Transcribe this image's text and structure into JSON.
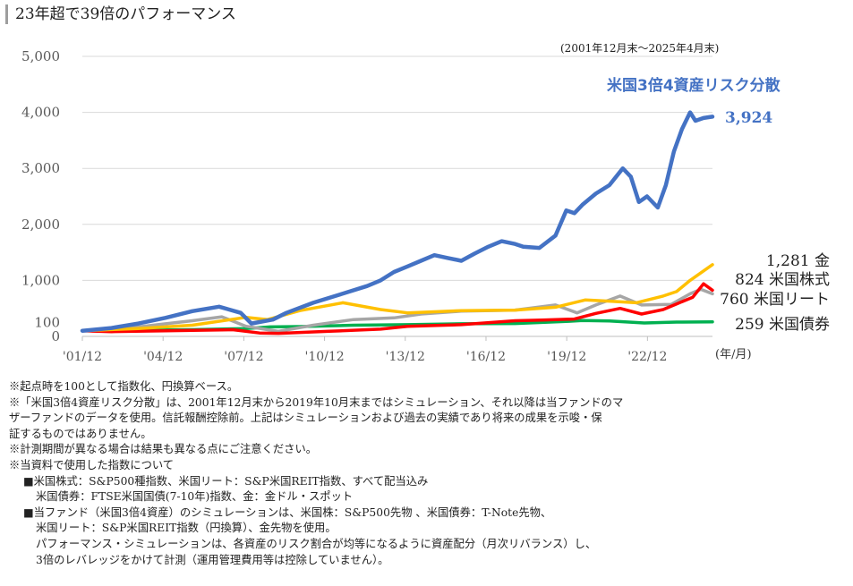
{
  "title": "23年超で39倍のパフォーマンス",
  "period": "(2001年12月末〜2025年4月末)",
  "chart_data": {
    "type": "line",
    "ylim": [
      0,
      5000
    ],
    "y_ticks": [
      "0",
      "100",
      "1,000",
      "2,000",
      "3,000",
      "4,000",
      "5,000"
    ],
    "y_tick_values": [
      0,
      100,
      1000,
      2000,
      3000,
      4000,
      5000
    ],
    "x_ticks": [
      "'01/12",
      "'04/12",
      "'07/12",
      "'10/12",
      "'13/12",
      "'16/12",
      "'19/12",
      "'22/12"
    ],
    "x_tick_values": [
      2001.917,
      2004.917,
      2007.917,
      2010.917,
      2013.917,
      2016.917,
      2019.917,
      2022.917
    ],
    "x_range": [
      2001.917,
      2025.333
    ],
    "x_unit": "(年/月)",
    "grid": true,
    "series": [
      {
        "name": "米国3倍4資産リスク分散",
        "color": "#4472c4",
        "end_label": "3,924",
        "x": [
          2001.917,
          2003.0,
          2004.0,
          2005.0,
          2006.0,
          2007.0,
          2007.8,
          2008.2,
          2009.0,
          2009.5,
          2010.5,
          2011.5,
          2012.5,
          2013.0,
          2013.5,
          2014.0,
          2014.5,
          2015.0,
          2015.5,
          2016.0,
          2016.5,
          2017.0,
          2017.5,
          2018.0,
          2018.3,
          2018.9,
          2019.5,
          2019.9,
          2020.2,
          2020.5,
          2021.0,
          2021.5,
          2022.0,
          2022.3,
          2022.6,
          2022.9,
          2023.3,
          2023.6,
          2023.9,
          2024.2,
          2024.5,
          2024.7,
          2025.0,
          2025.333
        ],
        "y": [
          100,
          150,
          230,
          330,
          450,
          530,
          420,
          230,
          300,
          420,
          600,
          750,
          900,
          1000,
          1150,
          1250,
          1350,
          1450,
          1400,
          1350,
          1480,
          1600,
          1700,
          1650,
          1600,
          1580,
          1800,
          2250,
          2200,
          2350,
          2550,
          2700,
          3000,
          2850,
          2400,
          2500,
          2300,
          2700,
          3300,
          3700,
          4000,
          3850,
          3900,
          3924
        ]
      },
      {
        "name": "金",
        "color": "#ffc000",
        "end_label": "1,281 金",
        "x": [
          2001.917,
          2004.0,
          2006.0,
          2008.0,
          2008.8,
          2010.0,
          2011.6,
          2013.0,
          2014.0,
          2016.0,
          2018.0,
          2019.5,
          2020.6,
          2021.5,
          2022.5,
          2023.5,
          2024.0,
          2024.5,
          2025.333
        ],
        "y": [
          100,
          140,
          200,
          340,
          300,
          460,
          600,
          480,
          420,
          460,
          470,
          520,
          650,
          630,
          600,
          720,
          800,
          1000,
          1281
        ]
      },
      {
        "name": "米国株式",
        "color": "#ff0000",
        "end_label": "824 米国株式",
        "x": [
          2001.917,
          2003.0,
          2005.0,
          2007.5,
          2008.5,
          2009.2,
          2011.0,
          2013.0,
          2014.0,
          2016.0,
          2018.0,
          2019.0,
          2020.2,
          2021.0,
          2021.9,
          2022.7,
          2023.5,
          2024.0,
          2024.6,
          2025.0,
          2025.333
        ],
        "y": [
          100,
          85,
          100,
          120,
          60,
          55,
          90,
          130,
          180,
          210,
          280,
          290,
          310,
          410,
          500,
          400,
          480,
          580,
          700,
          940,
          824
        ]
      },
      {
        "name": "米国リート",
        "color": "#a6a6a6",
        "end_label": "760 米国リート",
        "x": [
          2001.917,
          2004.0,
          2006.0,
          2007.1,
          2008.0,
          2009.2,
          2010.5,
          2012.0,
          2013.5,
          2014.5,
          2016.0,
          2018.0,
          2019.5,
          2020.3,
          2021.0,
          2021.9,
          2022.7,
          2023.8,
          2024.5,
          2024.9,
          2025.333
        ],
        "y": [
          100,
          170,
          280,
          350,
          180,
          90,
          200,
          300,
          330,
          400,
          450,
          470,
          560,
          420,
          560,
          720,
          560,
          570,
          760,
          840,
          760
        ]
      },
      {
        "name": "米国債券",
        "color": "#00b050",
        "end_label": "259 米国債券",
        "x": [
          2001.917,
          2004.0,
          2006.0,
          2008.0,
          2008.9,
          2010.0,
          2012.0,
          2014.0,
          2016.0,
          2018.0,
          2020.0,
          2020.5,
          2021.5,
          2022.8,
          2024.0,
          2025.333
        ],
        "y": [
          100,
          110,
          120,
          140,
          170,
          175,
          200,
          210,
          225,
          230,
          270,
          285,
          275,
          240,
          255,
          259
        ]
      }
    ]
  },
  "notes": [
    "※起点時を100として指数化、円換算ベース。",
    "※「米国3倍4資産リスク分散」は、2001年12月末から2019年10月末まではシミュレーション、それ以降は当ファンドのマ",
    "ザーファンドのデータを使用。信託報酬控除前。上記はシミュレーションおよび過去の実績であり将来の成果を示唆・保",
    "証するものではありません。",
    "※計測期間が異なる場合は結果も異なる点にご注意ください。",
    "※当資料で使用した指数について",
    "■米国株式：S&P500種指数、米国リート：S&P米国REIT指数、すべて配当込み",
    "米国債券：FTSE米国国債(7-10年)指数、金：金ドル・スポット",
    "■当ファンド（米国3倍4資産）のシミュレーションは、米国株：S&P500先物 、米国債券：T-Note先物、",
    "米国リート：S&P米国REIT指数（円換算）、金先物を使用。",
    "パフォーマンス・シミュレーションは、各資産のリスク割合が均等になるように資産配分（月次リバランス）し、",
    "3倍のレバレッジをかけて計測（運用管理費用等は控除していません）。"
  ]
}
